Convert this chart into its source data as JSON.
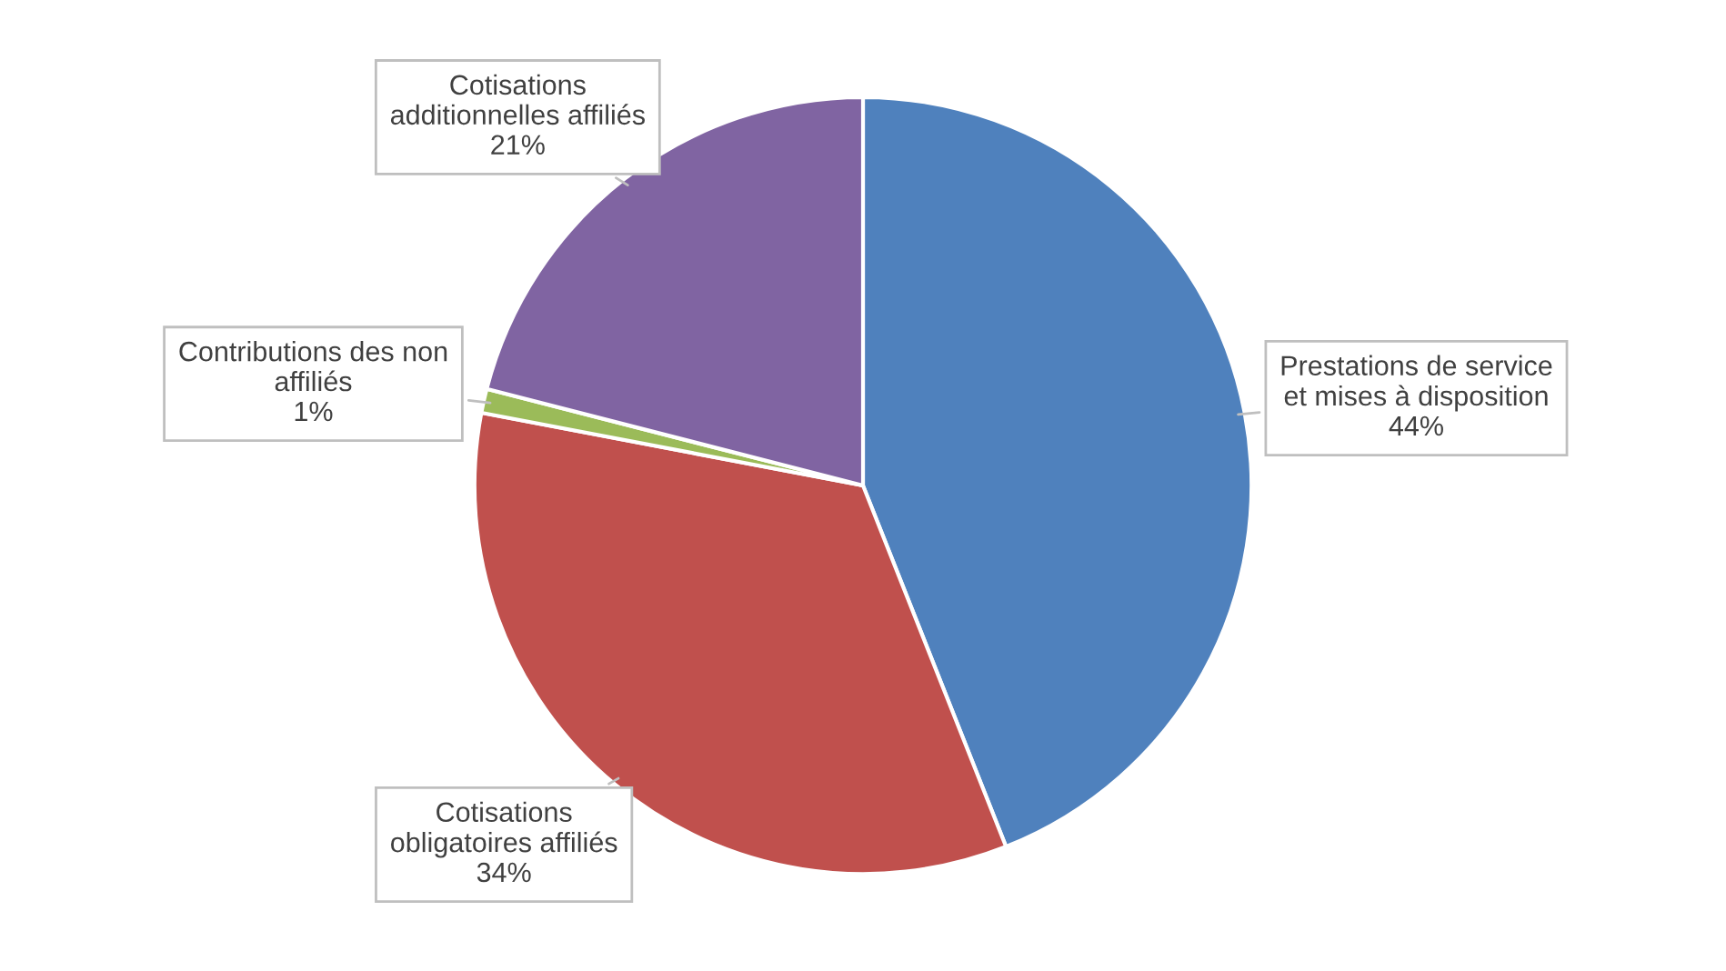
{
  "chart_data": {
    "type": "pie",
    "categories": [
      "Prestations de service\net mises à disposition",
      "Cotisations\nobligatoires affiliés",
      "Contributions des non\naffiliés",
      "Cotisations\nadditionnelles affiliés"
    ],
    "values": [
      44,
      34,
      1,
      21
    ],
    "value_labels": [
      "44%",
      "34%",
      "1%",
      "21%"
    ],
    "colors": [
      "#4f81bd",
      "#c0504d",
      "#9bbb59",
      "#8064a2"
    ],
    "legend": false
  }
}
